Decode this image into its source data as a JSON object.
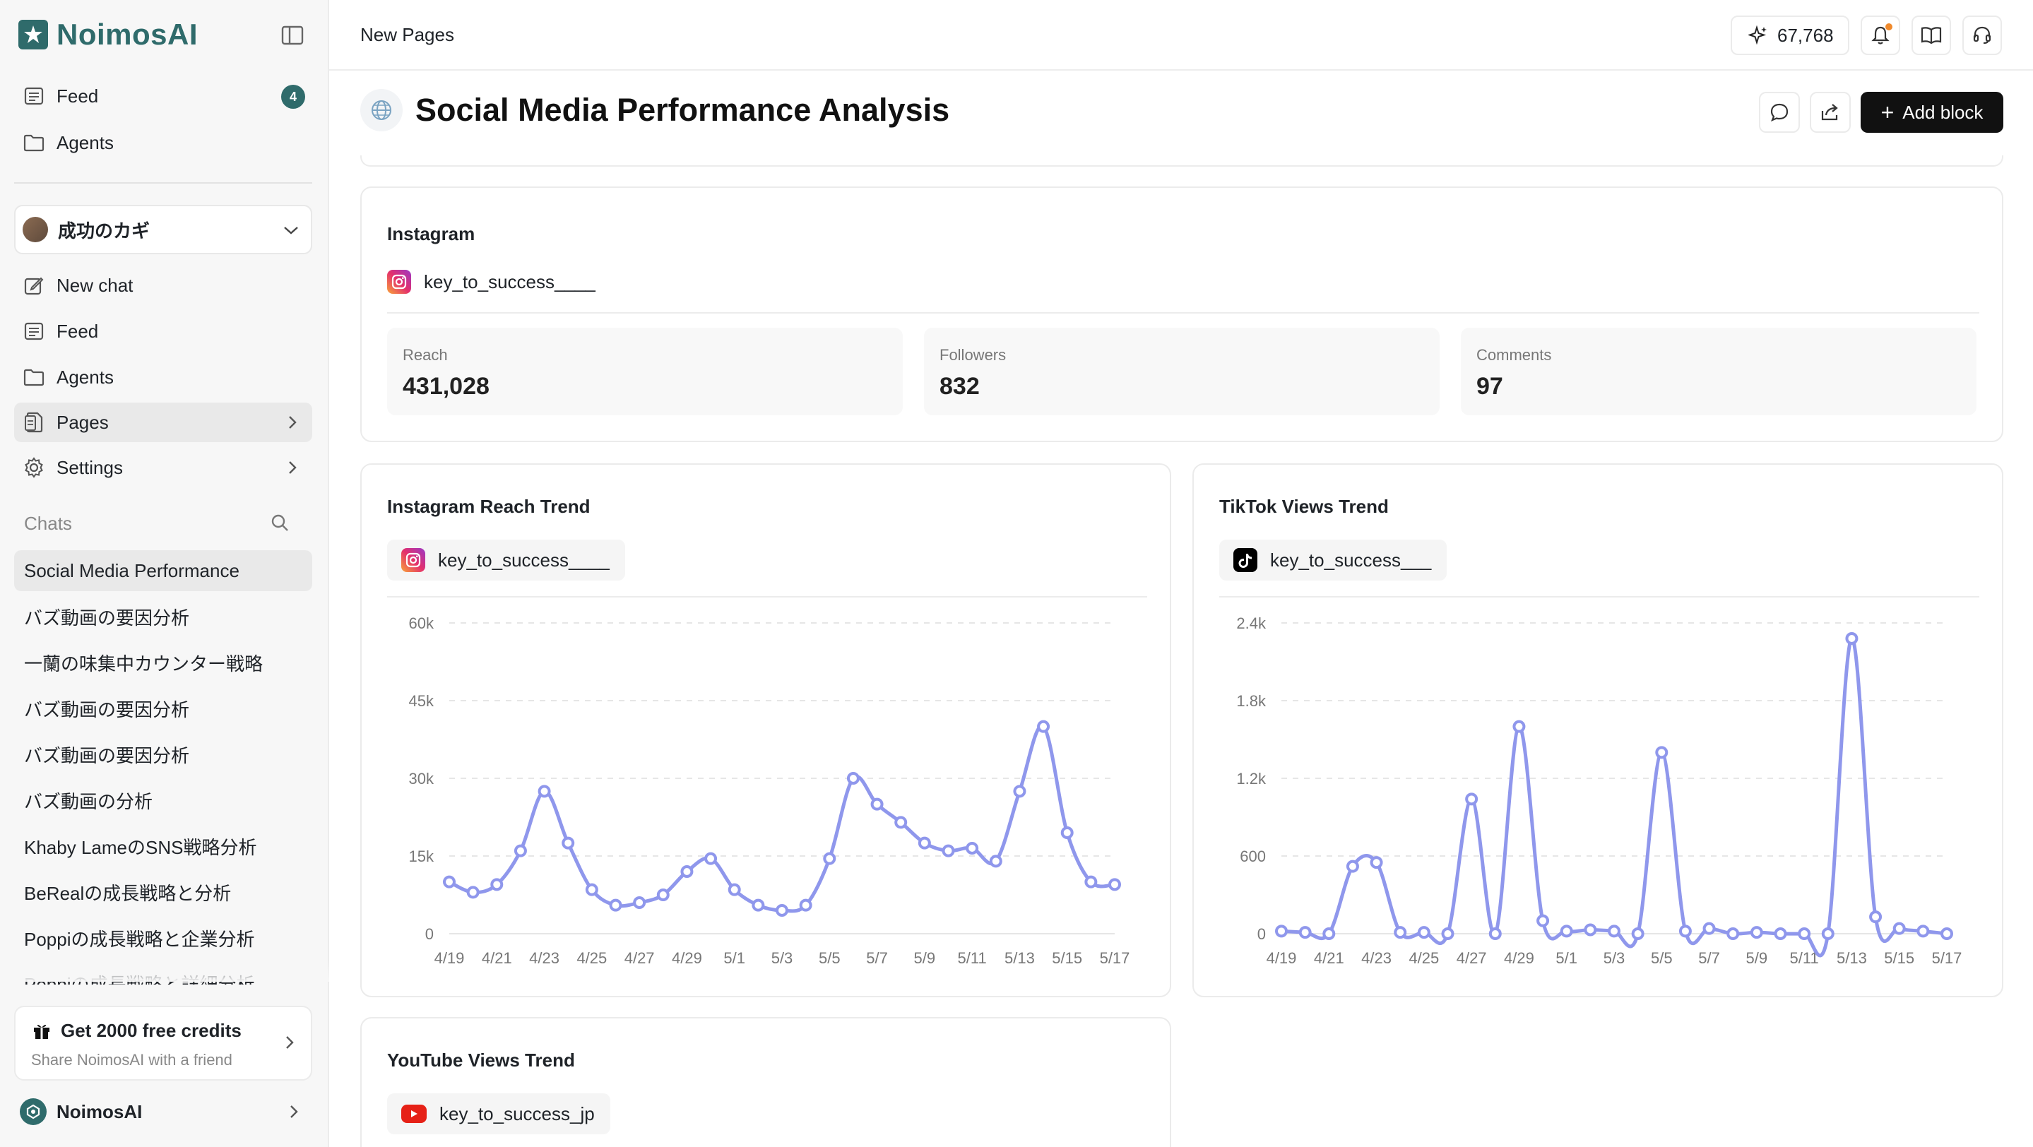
{
  "brand": {
    "name": "NoimosAI"
  },
  "sidebar": {
    "top_items": [
      {
        "label": "Feed",
        "icon": "feed-icon",
        "badge": "4"
      },
      {
        "label": "Agents",
        "icon": "folder-icon"
      }
    ],
    "workspace": {
      "name": "成功のカギ"
    },
    "items": [
      {
        "label": "New chat",
        "icon": "new-chat-icon"
      },
      {
        "label": "Feed",
        "icon": "feed-icon"
      },
      {
        "label": "Agents",
        "icon": "folder-icon"
      },
      {
        "label": "Pages",
        "icon": "pages-icon",
        "active": true
      },
      {
        "label": "Settings",
        "icon": "gear-icon"
      }
    ],
    "chats_heading": "Chats",
    "chats": [
      "Social Media Performance",
      "バズ動画の要因分析",
      "一蘭の味集中カウンター戦略",
      "バズ動画の要因分析",
      "バズ動画の要因分析",
      "バズ動画の分析",
      "Khaby LameのSNS戦略分析",
      "BeRealの成長戦略と分析",
      "Poppiの成長戦略と企業分析",
      "Poppiの成長戦略と詳細分析"
    ],
    "promo": {
      "title": "Get 2000 free credits",
      "subtitle": "Share NoimosAI with a friend"
    },
    "account": {
      "name": "NoimosAI"
    }
  },
  "topbar": {
    "breadcrumb": "New Pages",
    "credits": "67,768"
  },
  "page": {
    "title": "Social Media Performance Analysis",
    "add_block_label": "Add block"
  },
  "instagram_card": {
    "title": "Instagram",
    "account": "key_to_success____",
    "stats": [
      {
        "label": "Reach",
        "value": "431,028"
      },
      {
        "label": "Followers",
        "value": "832"
      },
      {
        "label": "Comments",
        "value": "97"
      }
    ]
  },
  "youtube_card": {
    "title": "YouTube Views Trend",
    "account": "key_to_success_jp"
  },
  "colors": {
    "accent": "#2f6b6b",
    "line": "#8f97ec",
    "dark_button": "#111111"
  },
  "chart_data": [
    {
      "type": "line",
      "title": "Instagram Reach Trend",
      "account": "key_to_success____",
      "x": [
        "4/19",
        "4/20",
        "4/21",
        "4/22",
        "4/23",
        "4/24",
        "4/25",
        "4/26",
        "4/27",
        "4/28",
        "4/29",
        "4/30",
        "5/1",
        "5/2",
        "5/3",
        "5/4",
        "5/5",
        "5/6",
        "5/7",
        "5/8",
        "5/9",
        "5/10",
        "5/11",
        "5/12",
        "5/13",
        "5/14",
        "5/15",
        "5/16",
        "5/17"
      ],
      "x_tick_labels": [
        "4/19",
        "4/21",
        "4/23",
        "4/25",
        "4/27",
        "4/29",
        "5/1",
        "5/3",
        "5/5",
        "5/7",
        "5/9",
        "5/11",
        "5/13",
        "5/15",
        "5/17"
      ],
      "values": [
        10000,
        8000,
        9500,
        16000,
        27500,
        17500,
        8500,
        5500,
        6000,
        7500,
        12000,
        14500,
        8500,
        5500,
        4500,
        5500,
        14500,
        30000,
        25000,
        21500,
        17500,
        16000,
        16500,
        14000,
        27500,
        40000,
        19500,
        10000,
        9500
      ],
      "y_ticks": [
        0,
        15000,
        30000,
        45000,
        60000
      ],
      "y_tick_labels": [
        "0",
        "15k",
        "30k",
        "45k",
        "60k"
      ],
      "ylim": [
        0,
        60000
      ],
      "grid": true
    },
    {
      "type": "line",
      "title": "TikTok Views Trend",
      "account": "key_to_success___",
      "x": [
        "4/19",
        "4/20",
        "4/21",
        "4/22",
        "4/23",
        "4/24",
        "4/25",
        "4/26",
        "4/27",
        "4/28",
        "4/29",
        "4/30",
        "5/1",
        "5/2",
        "5/3",
        "5/4",
        "5/5",
        "5/6",
        "5/7",
        "5/8",
        "5/9",
        "5/10",
        "5/11",
        "5/12",
        "5/13",
        "5/14",
        "5/15",
        "5/16",
        "5/17"
      ],
      "x_tick_labels": [
        "4/19",
        "4/21",
        "4/23",
        "4/25",
        "4/27",
        "4/29",
        "5/1",
        "5/3",
        "5/5",
        "5/7",
        "5/9",
        "5/11",
        "5/13",
        "5/15",
        "5/17"
      ],
      "values": [
        20,
        10,
        0,
        520,
        550,
        10,
        10,
        0,
        1040,
        0,
        1600,
        100,
        20,
        30,
        20,
        0,
        1400,
        20,
        40,
        0,
        10,
        0,
        0,
        0,
        2280,
        130,
        40,
        20,
        0
      ],
      "y_ticks": [
        0,
        600,
        1200,
        1800,
        2400
      ],
      "y_tick_labels": [
        "0",
        "600",
        "1.2k",
        "1.8k",
        "2.4k"
      ],
      "ylim": [
        0,
        2400
      ],
      "grid": true
    }
  ]
}
